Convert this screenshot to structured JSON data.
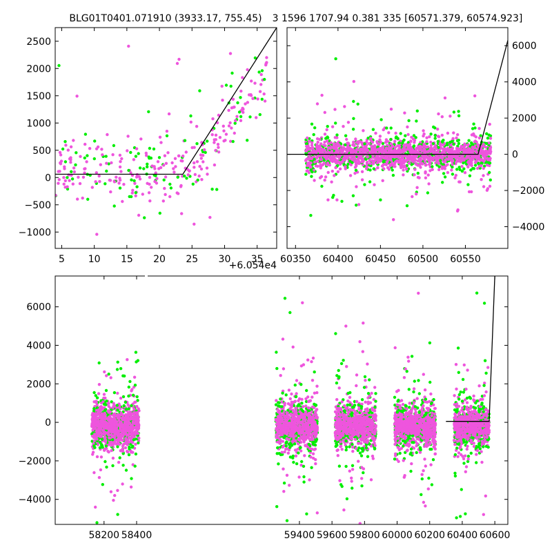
{
  "titles": {
    "left": "BLG01T0401.071910 (3933.17, 755.45)",
    "right": "3 1596 1707.94 0.381 335 [60571.379, 60574.923]"
  },
  "colors": {
    "series_a": "#00ee00",
    "series_b": "#ee55dd",
    "model": "#000000",
    "axes": "#000000"
  },
  "chart_data": [
    {
      "id": "top-left",
      "type": "scatter",
      "x_range": [
        4,
        38
      ],
      "y_range": [
        -1300,
        2750
      ],
      "x_ticks": [
        5,
        10,
        15,
        20,
        25,
        30,
        35
      ],
      "x_tick_labels": [
        "5",
        "10",
        "15",
        "20",
        "25",
        "30",
        "35"
      ],
      "x_offset_label": "+6.054e4",
      "y_ticks": [
        -1000,
        -500,
        0,
        500,
        1000,
        1500,
        2000,
        2500
      ],
      "y_tick_labels": [
        "−1000",
        "−500",
        "0",
        "500",
        "1000",
        "1500",
        "2000",
        "2500"
      ],
      "y_axis_side": "left",
      "model_line": [
        [
          4,
          60
        ],
        [
          23.6,
          60
        ],
        [
          38,
          2750
        ]
      ],
      "scatter": {
        "x_segments": [
          [
            4,
            36.5
          ]
        ],
        "base": 150,
        "spread": 350,
        "seed": 11,
        "n": 260,
        "rise": {
          "x0": 25,
          "slope": 150
        }
      }
    },
    {
      "id": "top-right",
      "type": "scatter",
      "x_range": [
        60340,
        60600
      ],
      "y_range": [
        -5200,
        7000
      ],
      "x_ticks": [
        60350,
        60400,
        60450,
        60500,
        60550
      ],
      "x_tick_labels": [
        "60350",
        "60400",
        "60450",
        "60500",
        "60550"
      ],
      "y_ticks": [
        -4000,
        -2000,
        0,
        2000,
        4000,
        6000
      ],
      "y_tick_labels": [
        "−4000",
        "−2000",
        "0",
        "2000",
        "4000",
        "6000"
      ],
      "y_axis_side": "right",
      "model_line": [
        [
          60340,
          0
        ],
        [
          60565,
          0
        ],
        [
          60600,
          6300
        ]
      ],
      "scatter": {
        "x_segments": [
          [
            60362,
            60580
          ]
        ],
        "base": 0,
        "spread": 450,
        "seed": 23,
        "n": 1500
      }
    },
    {
      "id": "bottom",
      "type": "scatter",
      "x_range": [
        57900,
        60680
      ],
      "y_range": [
        -5300,
        7600
      ],
      "x_ticks": [
        58200,
        58400,
        59400,
        59600,
        59800,
        60000,
        60200,
        60400,
        60600
      ],
      "x_tick_labels": [
        "58200",
        "58400",
        "59400",
        "59600",
        "59800",
        "60000",
        "60200",
        "60400",
        "60600"
      ],
      "y_ticks": [
        -4000,
        -2000,
        0,
        2000,
        4000,
        6000
      ],
      "y_tick_labels": [
        "−4000",
        "−2000",
        "0",
        "2000",
        "4000",
        "6000"
      ],
      "y_axis_side": "left",
      "model_line": [
        [
          60300,
          50
        ],
        [
          60565,
          50
        ],
        [
          60600,
          7600
        ]
      ],
      "scatter": {
        "x_segments": [
          [
            58125,
            58415
          ],
          [
            59255,
            59510
          ],
          [
            59620,
            59870
          ],
          [
            59985,
            60235
          ],
          [
            60350,
            60565
          ]
        ],
        "base": -200,
        "spread": 600,
        "seed": 37,
        "n": 4000
      }
    }
  ]
}
